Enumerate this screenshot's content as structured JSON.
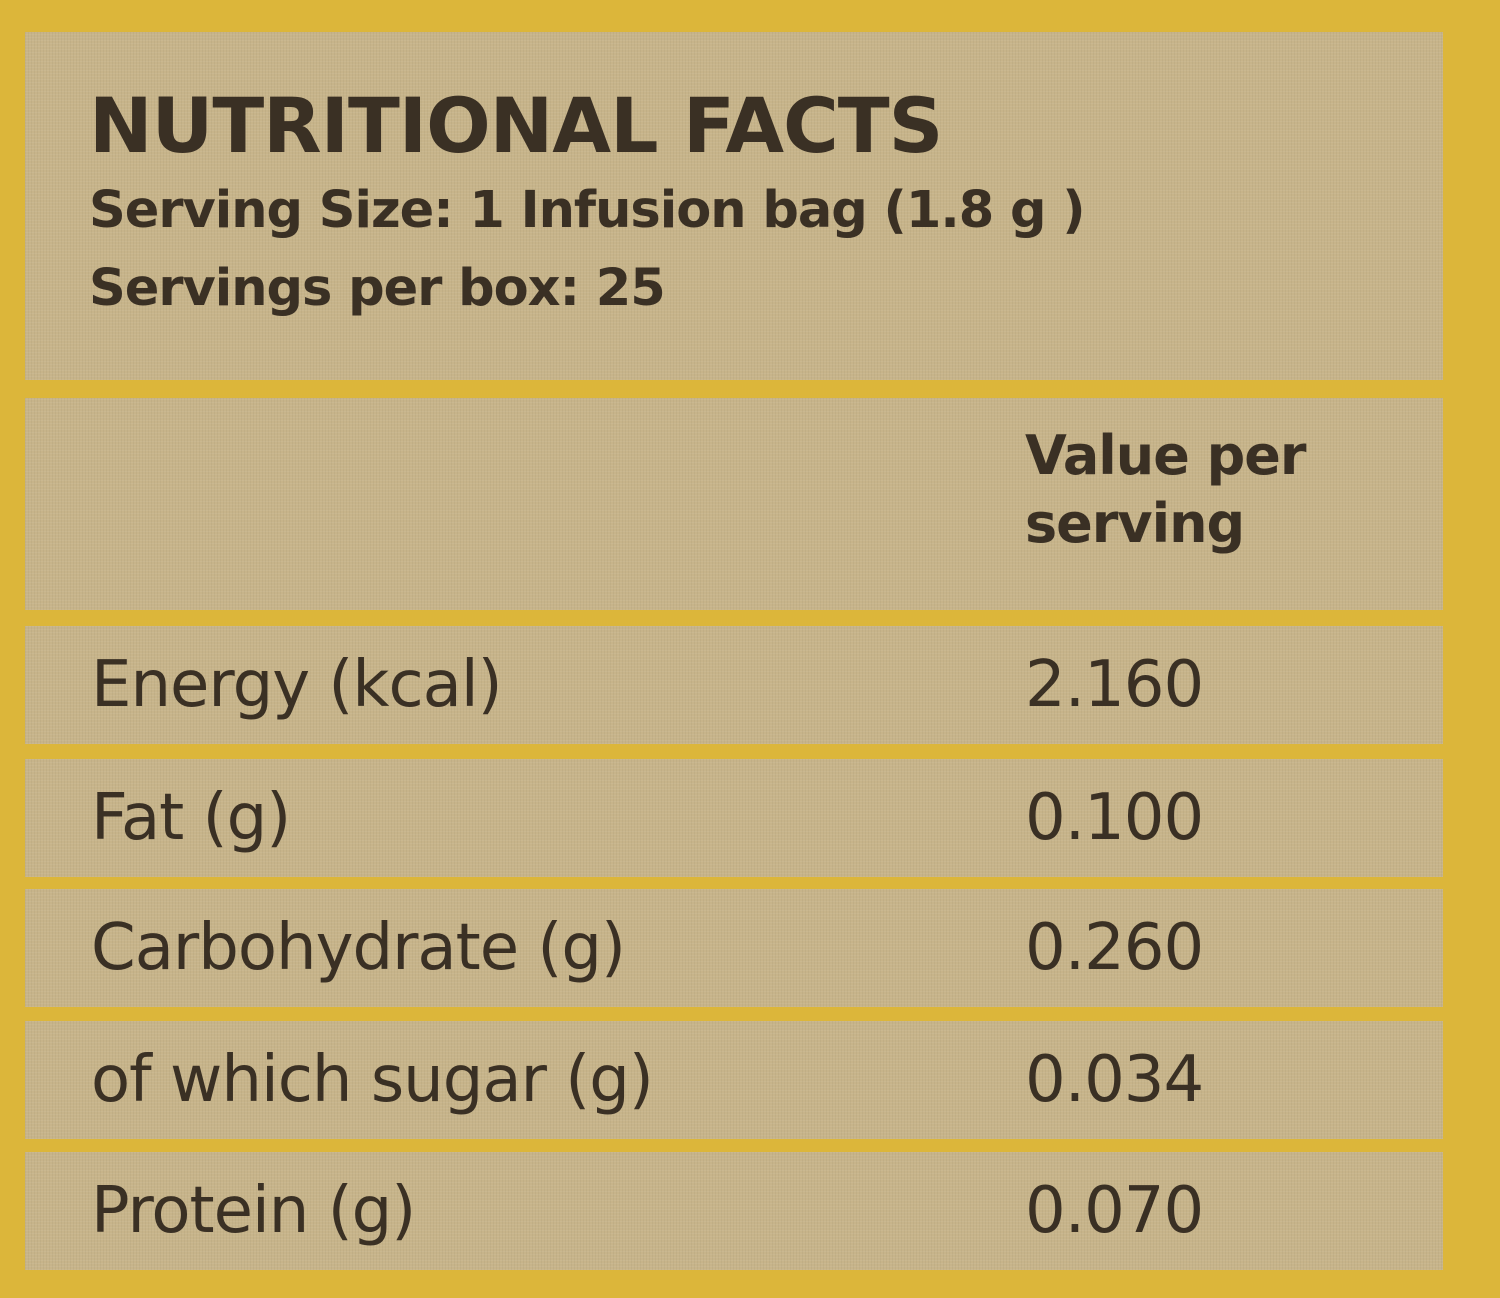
{
  "header": {
    "title": "NUTRITIONAL FACTS",
    "serving_size": "Serving Size: 1 Infusion bag (1.8 g )",
    "servings_per_box": "Servings per box: 25"
  },
  "table": {
    "column_header": "Value per serving",
    "rows": [
      {
        "label": "Energy (kcal)",
        "value": "2.160"
      },
      {
        "label": "Fat (g)",
        "value": "0.100"
      },
      {
        "label": "Carbohydrate (g)",
        "value": "0.260"
      },
      {
        "label": "of which sugar (g)",
        "value": "0.034"
      },
      {
        "label": "Protein (g)",
        "value": "0.070"
      }
    ]
  },
  "colors": {
    "border_yellow": "#dcb63a",
    "panel_beige": "#c7b48a",
    "text_brown": "#3a3024"
  }
}
